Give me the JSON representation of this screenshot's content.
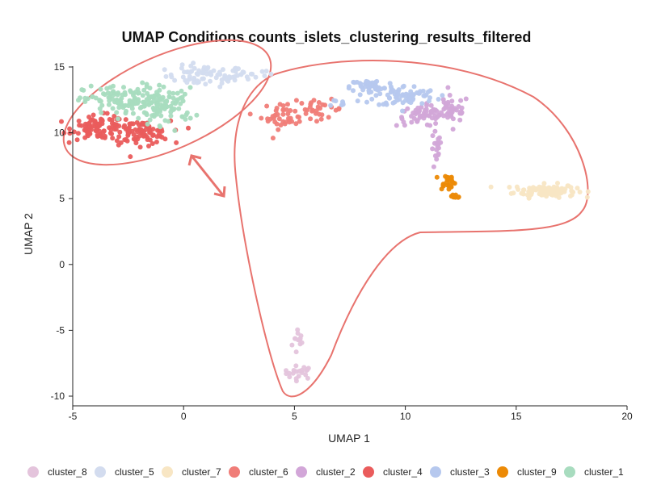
{
  "chart_data": {
    "type": "scatter",
    "title": "UMAP Conditions counts_islets_clustering_results_filtered",
    "xlabel": "UMAP 1",
    "ylabel": "UMAP 2",
    "xlim": [
      -5,
      20
    ],
    "ylim": [
      -10,
      15
    ],
    "xticks": [
      -5,
      0,
      5,
      10,
      15,
      20
    ],
    "yticks": [
      -10,
      -5,
      0,
      5,
      10,
      15
    ],
    "xtick_labels": [
      "-5",
      "0",
      "5",
      "10",
      "15",
      "20"
    ],
    "ytick_labels": [
      "-10",
      "-5",
      "0",
      "5",
      "10",
      "15"
    ],
    "grid": false,
    "legend_position": "bottom",
    "series": [
      {
        "name": "cluster_8",
        "color": "#e4c4dc",
        "clusters": [
          {
            "cx": 5.2,
            "cy": -5.8,
            "sx": 0.15,
            "sy": 0.6,
            "n": 12
          },
          {
            "cx": 5.2,
            "cy": -8.2,
            "sx": 0.35,
            "sy": 0.25,
            "n": 20
          }
        ]
      },
      {
        "name": "cluster_5",
        "color": "#d3dcef",
        "clusters": [
          {
            "cx": 1.0,
            "cy": 14.3,
            "sx": 0.9,
            "sy": 0.4,
            "n": 70
          },
          {
            "cx": 3.0,
            "cy": 14.5,
            "sx": 0.5,
            "sy": 0.2,
            "n": 15
          }
        ]
      },
      {
        "name": "cluster_7",
        "color": "#f8e6c4",
        "clusters": [
          {
            "cx": 16.3,
            "cy": 5.6,
            "sx": 0.7,
            "sy": 0.25,
            "n": 110
          }
        ]
      },
      {
        "name": "cluster_6",
        "color": "#f07d78",
        "clusters": [
          {
            "cx": 4.6,
            "cy": 11.3,
            "sx": 0.55,
            "sy": 0.5,
            "n": 45
          },
          {
            "cx": 6.2,
            "cy": 11.8,
            "sx": 0.5,
            "sy": 0.35,
            "n": 25
          }
        ]
      },
      {
        "name": "cluster_2",
        "color": "#d2a6d8",
        "clusters": [
          {
            "cx": 10.8,
            "cy": 11.3,
            "sx": 0.6,
            "sy": 0.4,
            "n": 55
          },
          {
            "cx": 12.1,
            "cy": 11.8,
            "sx": 0.4,
            "sy": 0.5,
            "n": 40
          },
          {
            "cx": 11.4,
            "cy": 8.6,
            "sx": 0.12,
            "sy": 0.8,
            "n": 18
          }
        ]
      },
      {
        "name": "cluster_4",
        "color": "#ea5c5c",
        "clusters": [
          {
            "cx": -3.8,
            "cy": 10.4,
            "sx": 0.6,
            "sy": 0.45,
            "n": 90
          },
          {
            "cx": -2.0,
            "cy": 10.0,
            "sx": 0.7,
            "sy": 0.45,
            "n": 90
          }
        ]
      },
      {
        "name": "cluster_3",
        "color": "#b6c8ee",
        "clusters": [
          {
            "cx": 8.5,
            "cy": 13.5,
            "sx": 0.5,
            "sy": 0.3,
            "n": 50
          },
          {
            "cx": 10.0,
            "cy": 12.8,
            "sx": 0.7,
            "sy": 0.4,
            "n": 70
          },
          {
            "cx": 7.2,
            "cy": 12.3,
            "sx": 0.3,
            "sy": 0.15,
            "n": 8
          }
        ]
      },
      {
        "name": "cluster_9",
        "color": "#ec8a06",
        "clusters": [
          {
            "cx": 11.9,
            "cy": 6.3,
            "sx": 0.18,
            "sy": 0.3,
            "n": 26
          },
          {
            "cx": 12.2,
            "cy": 5.2,
            "sx": 0.18,
            "sy": 0.12,
            "n": 10
          }
        ]
      },
      {
        "name": "cluster_1",
        "color": "#a8dcbf",
        "clusters": [
          {
            "cx": -2.5,
            "cy": 12.4,
            "sx": 1.0,
            "sy": 0.6,
            "n": 140
          },
          {
            "cx": -0.7,
            "cy": 12.0,
            "sx": 0.6,
            "sy": 0.7,
            "n": 60
          }
        ]
      }
    ]
  },
  "annotation": {
    "outline_color": "#e8736e"
  }
}
